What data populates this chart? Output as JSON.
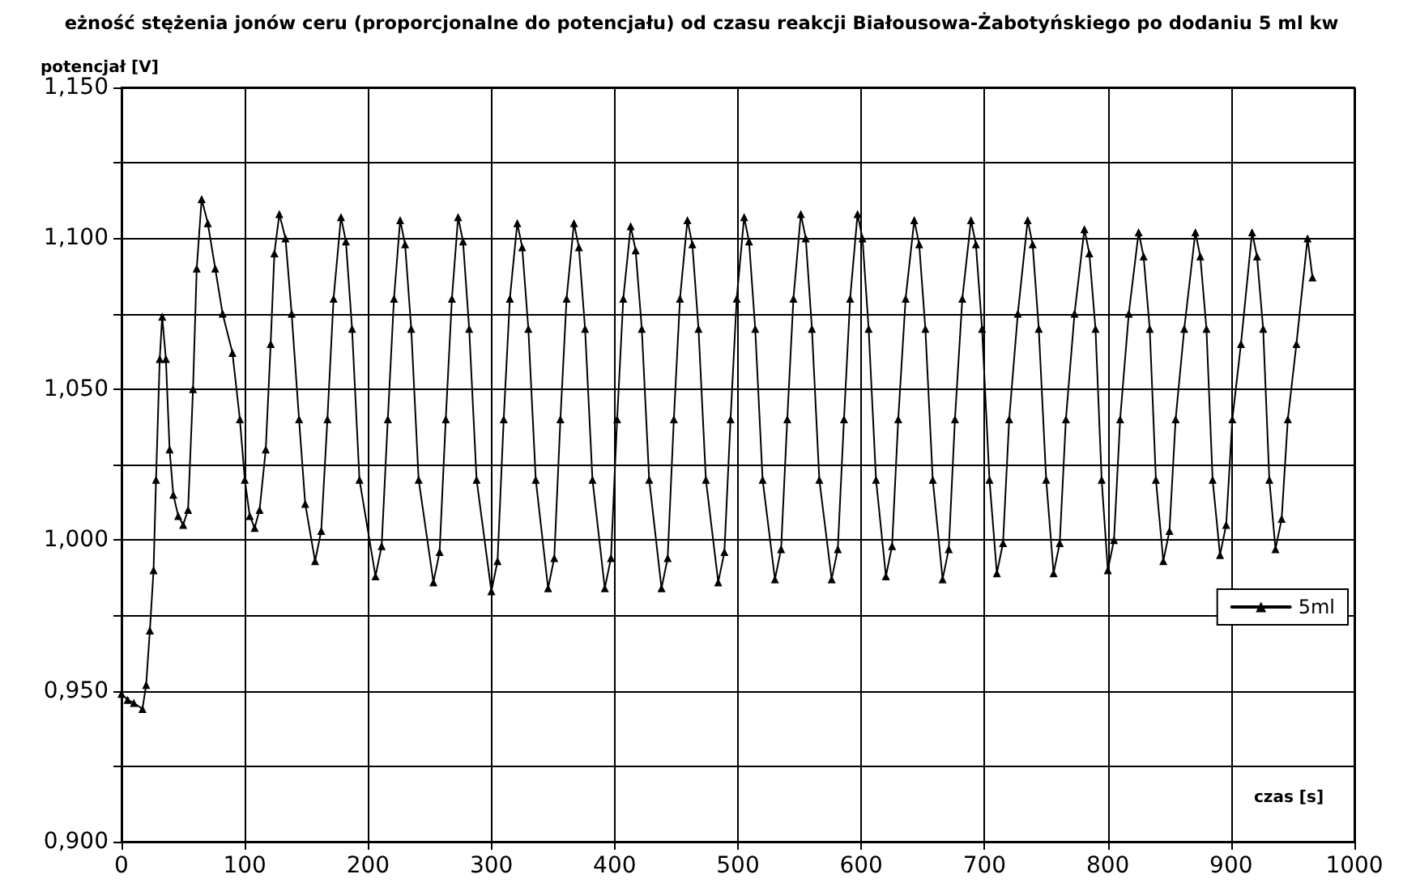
{
  "chart_data": {
    "type": "line",
    "title": "eżność stężenia jonów ceru (proporcjonalne do potencjału) od czasu reakcji Białousowa-Żabotyńskiego po dodaniu 5 ml kw",
    "xlabel": "czas [s]",
    "ylabel": "potencjał [V]",
    "xlim": [
      0,
      1000
    ],
    "xticks": [
      0,
      100,
      200,
      300,
      400,
      500,
      600,
      700,
      800,
      900,
      1000
    ],
    "ylim": [
      0.9,
      1.15
    ],
    "yticks": [
      {
        "value": 0.9,
        "label": "0,900"
      },
      {
        "value": 0.925,
        "label": null
      },
      {
        "value": 0.95,
        "label": "0,950"
      },
      {
        "value": 0.975,
        "label": null
      },
      {
        "value": 1.0,
        "label": "1,000"
      },
      {
        "value": 1.025,
        "label": null
      },
      {
        "value": 1.05,
        "label": "1,050"
      },
      {
        "value": 1.075,
        "label": null
      },
      {
        "value": 1.1,
        "label": "1,100"
      },
      {
        "value": 1.125,
        "label": null
      },
      {
        "value": 1.15,
        "label": "1,150"
      }
    ],
    "grid": true,
    "legend": "right",
    "marker": "triangle",
    "line_style": "solid",
    "series": [
      {
        "name": "5ml",
        "color": "#000000",
        "x": [
          0,
          5,
          10,
          17,
          20,
          23,
          26,
          28,
          31,
          33,
          36,
          39,
          42,
          46,
          50,
          54,
          58,
          61,
          65,
          70,
          76,
          82,
          90,
          96,
          100,
          104,
          108,
          112,
          117,
          121,
          124,
          128,
          133,
          138,
          144,
          149,
          157,
          162,
          167,
          172,
          178,
          182,
          187,
          193,
          206,
          211,
          216,
          221,
          226,
          230,
          235,
          241,
          253,
          258,
          263,
          268,
          273,
          277,
          282,
          288,
          300,
          305,
          310,
          315,
          321,
          325,
          330,
          336,
          346,
          351,
          356,
          361,
          367,
          371,
          376,
          382,
          392,
          397,
          402,
          407,
          413,
          417,
          422,
          428,
          438,
          443,
          448,
          453,
          459,
          463,
          468,
          474,
          484,
          489,
          494,
          499,
          505,
          509,
          514,
          520,
          530,
          535,
          540,
          545,
          551,
          555,
          560,
          566,
          576,
          581,
          586,
          591,
          597,
          601,
          606,
          612,
          620,
          625,
          630,
          636,
          643,
          647,
          652,
          658,
          666,
          671,
          676,
          682,
          689,
          693,
          698,
          704,
          710,
          715,
          720,
          727,
          735,
          739,
          744,
          750,
          756,
          761,
          766,
          773,
          781,
          785,
          790,
          795,
          800,
          805,
          810,
          817,
          825,
          829,
          834,
          839,
          845,
          850,
          855,
          862,
          871,
          875,
          880,
          885,
          891,
          896,
          901,
          908,
          917,
          921,
          926,
          931,
          936,
          941,
          946,
          953,
          962,
          966
        ],
        "values": [
          0.949,
          0.947,
          0.946,
          0.944,
          0.952,
          0.97,
          0.99,
          1.02,
          1.06,
          1.074,
          1.06,
          1.03,
          1.015,
          1.008,
          1.005,
          1.01,
          1.05,
          1.09,
          1.113,
          1.105,
          1.09,
          1.075,
          1.062,
          1.04,
          1.02,
          1.008,
          1.004,
          1.01,
          1.03,
          1.065,
          1.095,
          1.108,
          1.1,
          1.075,
          1.04,
          1.012,
          0.993,
          1.003,
          1.04,
          1.08,
          1.107,
          1.099,
          1.07,
          1.02,
          0.988,
          0.998,
          1.04,
          1.08,
          1.106,
          1.098,
          1.07,
          1.02,
          0.986,
          0.996,
          1.04,
          1.08,
          1.107,
          1.099,
          1.07,
          1.02,
          0.983,
          0.993,
          1.04,
          1.08,
          1.105,
          1.097,
          1.07,
          1.02,
          0.984,
          0.994,
          1.04,
          1.08,
          1.105,
          1.097,
          1.07,
          1.02,
          0.984,
          0.994,
          1.04,
          1.08,
          1.104,
          1.096,
          1.07,
          1.02,
          0.984,
          0.994,
          1.04,
          1.08,
          1.106,
          1.098,
          1.07,
          1.02,
          0.986,
          0.996,
          1.04,
          1.08,
          1.107,
          1.099,
          1.07,
          1.02,
          0.987,
          0.997,
          1.04,
          1.08,
          1.108,
          1.1,
          1.07,
          1.02,
          0.987,
          0.997,
          1.04,
          1.08,
          1.108,
          1.1,
          1.07,
          1.02,
          0.988,
          0.998,
          1.04,
          1.08,
          1.106,
          1.098,
          1.07,
          1.02,
          0.987,
          0.997,
          1.04,
          1.08,
          1.106,
          1.098,
          1.07,
          1.02,
          0.989,
          0.999,
          1.04,
          1.075,
          1.106,
          1.098,
          1.07,
          1.02,
          0.989,
          0.999,
          1.04,
          1.075,
          1.103,
          1.095,
          1.07,
          1.02,
          0.99,
          1.0,
          1.04,
          1.075,
          1.102,
          1.094,
          1.07,
          1.02,
          0.993,
          1.003,
          1.04,
          1.07,
          1.102,
          1.094,
          1.07,
          1.02,
          0.995,
          1.005,
          1.04,
          1.065,
          1.102,
          1.094,
          1.07,
          1.02,
          0.997,
          1.007,
          1.04,
          1.065,
          1.1,
          1.087
        ]
      }
    ]
  }
}
